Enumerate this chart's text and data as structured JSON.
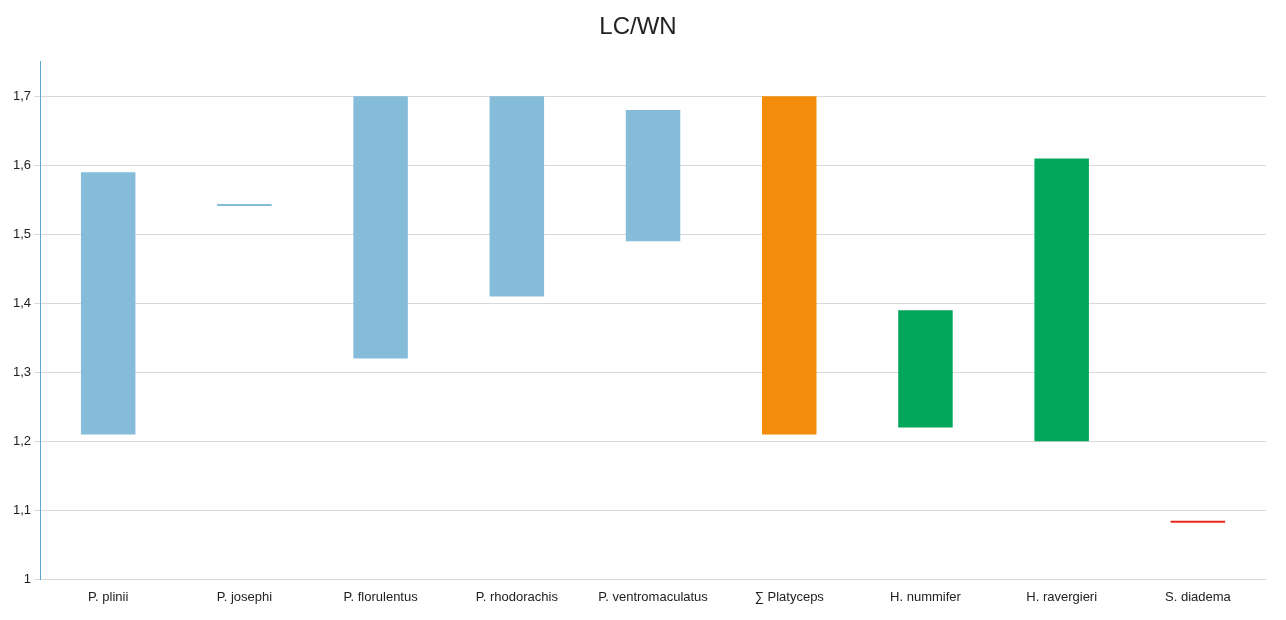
{
  "chart_data": {
    "type": "bar",
    "title": "LC/WN",
    "categories": [
      "P. plinii",
      "P. josephi",
      "P. florulentus",
      "P. rhodorachis",
      "P. ventromaculatus",
      "∑ Platyceps",
      "H. nummifer",
      "H. ravergieri",
      "S. diadema"
    ],
    "base": [
      1.21,
      1.541,
      1.32,
      1.41,
      1.49,
      1.21,
      1.22,
      1.2,
      1.082
    ],
    "values": [
      0.38,
      0.003,
      0.38,
      0.29,
      0.19,
      0.49,
      0.17,
      0.41,
      0.003
    ],
    "colors": [
      "#85bcd9",
      "#85bcd9",
      "#85bcd9",
      "#85bcd9",
      "#85bcd9",
      "#f28c0a",
      "#00a65a",
      "#00a65a",
      "#e8261c"
    ],
    "ylim": [
      1,
      1.75
    ],
    "yticks": [
      {
        "value": 1,
        "label": "1"
      },
      {
        "value": 1.1,
        "label": "1,1"
      },
      {
        "value": 1.2,
        "label": "1,2"
      },
      {
        "value": 1.3,
        "label": "1,3"
      },
      {
        "value": 1.4,
        "label": "1,4"
      },
      {
        "value": 1.5,
        "label": "1,5"
      },
      {
        "value": 1.6,
        "label": "1,6"
      },
      {
        "value": 1.7,
        "label": "1,7"
      }
    ],
    "grid": "y",
    "legend": false
  }
}
